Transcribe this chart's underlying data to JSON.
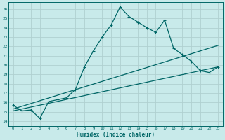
{
  "xlabel": "Humidex (Indice chaleur)",
  "bg_color": "#c8eaea",
  "grid_color": "#b0d0d0",
  "line_color": "#006666",
  "xlim": [
    -0.5,
    23.5
  ],
  "ylim": [
    13.5,
    26.7
  ],
  "xticks": [
    0,
    1,
    2,
    3,
    4,
    5,
    6,
    7,
    8,
    9,
    10,
    11,
    12,
    13,
    14,
    15,
    16,
    17,
    18,
    19,
    20,
    21,
    22,
    23
  ],
  "yticks": [
    14,
    15,
    16,
    17,
    18,
    19,
    20,
    21,
    22,
    23,
    24,
    25,
    26
  ],
  "line1_x": [
    0,
    1,
    2,
    3,
    4,
    5,
    6,
    7,
    8,
    9,
    10,
    11,
    12,
    13,
    14,
    15,
    16,
    17,
    18,
    19,
    20,
    21,
    22,
    23
  ],
  "line1_y": [
    15.7,
    15.1,
    15.2,
    14.3,
    16.1,
    16.3,
    16.5,
    17.4,
    19.8,
    21.5,
    23.0,
    24.3,
    26.2,
    25.2,
    24.6,
    24.0,
    23.5,
    24.8,
    21.8,
    21.1,
    20.4,
    19.4,
    19.2,
    19.8
  ],
  "line2_x": [
    0,
    23
  ],
  "line2_y": [
    15.3,
    22.1
  ],
  "line3_x": [
    0,
    23
  ],
  "line3_y": [
    15.1,
    19.8
  ]
}
